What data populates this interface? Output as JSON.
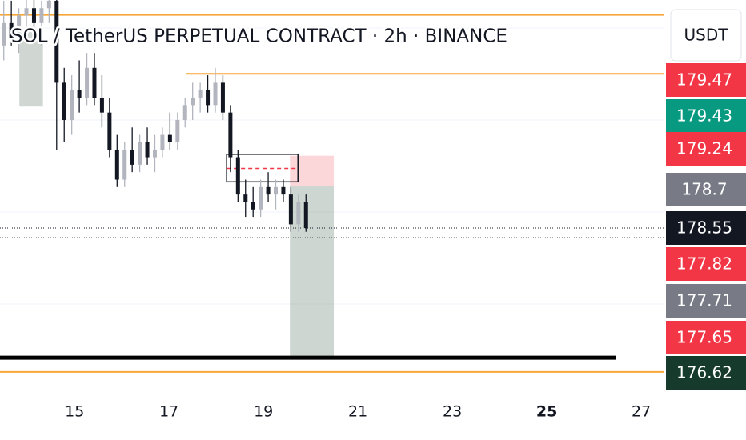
{
  "chart_data": {
    "type": "candlestick",
    "title": "SOL / TetherUS PERPETUAL CONTRACT · 2h · BINANCE",
    "currency": "USDT",
    "xlim": [
      13.42,
      27.49
    ],
    "ylim": [
      176.35,
      181.61
    ],
    "xticks": [
      15,
      17,
      19,
      21,
      23,
      25,
      27
    ],
    "up_color": "#b2b5be",
    "down_color": "#131722",
    "x": [
      13.5,
      13.66,
      13.82,
      13.98,
      14.14,
      14.3,
      14.46,
      14.62,
      14.78,
      14.94,
      15.1,
      15.26,
      15.42,
      15.58,
      15.74,
      15.9,
      16.06,
      16.22,
      16.38,
      16.54,
      16.7,
      16.86,
      17.02,
      17.18,
      17.34,
      17.5,
      17.66,
      17.82,
      17.98,
      18.14,
      18.3,
      18.46,
      18.62,
      18.78,
      18.94,
      19.1,
      19.26,
      19.42,
      19.58,
      19.74,
      19.9
    ],
    "open": [
      181.0,
      181.3,
      181.1,
      181.4,
      181.5,
      181.3,
      181.5,
      181.6,
      180.5,
      180.0,
      180.4,
      180.3,
      180.7,
      180.3,
      180.1,
      179.6,
      179.2,
      179.6,
      179.4,
      179.7,
      179.5,
      179.6,
      179.8,
      179.7,
      180.0,
      180.2,
      180.3,
      180.4,
      180.2,
      180.5,
      180.1,
      179.5,
      179.0,
      178.9,
      178.8,
      179.1,
      179.0,
      179.1,
      179.0,
      178.6,
      178.9
    ],
    "high": [
      181.6,
      181.6,
      181.5,
      181.7,
      181.7,
      181.6,
      181.7,
      181.7,
      180.7,
      180.6,
      180.8,
      180.9,
      180.9,
      180.6,
      180.3,
      179.8,
      179.7,
      179.9,
      179.8,
      179.9,
      179.8,
      179.9,
      180.1,
      180.1,
      180.3,
      180.5,
      180.5,
      180.6,
      180.7,
      180.6,
      180.2,
      179.6,
      179.2,
      179.1,
      179.2,
      179.3,
      179.2,
      179.2,
      179.1,
      179.0,
      179.0
    ],
    "low": [
      180.8,
      181.0,
      180.9,
      181.2,
      181.1,
      181.0,
      181.3,
      179.6,
      179.7,
      179.8,
      180.1,
      180.2,
      180.2,
      179.9,
      179.5,
      179.1,
      179.1,
      179.3,
      179.3,
      179.4,
      179.3,
      179.5,
      179.6,
      179.6,
      179.9,
      180.0,
      180.1,
      180.1,
      180.1,
      180.0,
      179.3,
      178.9,
      178.7,
      178.7,
      178.7,
      178.9,
      178.8,
      178.9,
      178.5,
      178.5,
      178.5
    ],
    "close": [
      181.3,
      181.1,
      181.4,
      181.5,
      181.3,
      181.5,
      181.6,
      180.5,
      180.0,
      180.4,
      180.3,
      180.7,
      180.3,
      180.1,
      179.6,
      179.2,
      179.6,
      179.4,
      179.7,
      179.5,
      179.6,
      179.8,
      179.7,
      180.0,
      180.2,
      180.3,
      180.4,
      180.2,
      180.5,
      180.1,
      179.5,
      179.0,
      178.9,
      178.8,
      179.1,
      179.0,
      179.1,
      179.0,
      178.6,
      178.9,
      178.55
    ],
    "levels": [
      {
        "value": 181.41,
        "color": "#f7a738"
      },
      {
        "value": 180.62,
        "start": 17.37,
        "color": "#f7a738"
      },
      {
        "value": 176.62,
        "color": "#f7a738"
      },
      {
        "value": 176.81,
        "end": 26.47,
        "color": "#000000"
      }
    ],
    "dotted_lines": [
      178.55,
      178.42
    ],
    "zones": [
      {
        "x0": 13.83,
        "x1": 14.33,
        "y0": 180.18,
        "y1": 181.18,
        "color": "rgba(120,140,130,0.35)"
      },
      {
        "x0": 19.56,
        "x1": 20.49,
        "y0": 179.11,
        "y1": 179.52,
        "color": "rgba(242,54,69,0.2)"
      },
      {
        "x0": 19.56,
        "x1": 20.49,
        "y0": 176.81,
        "y1": 179.11,
        "color": "rgba(90,120,100,0.3)"
      }
    ],
    "box": {
      "x0": 18.22,
      "x1": 19.73,
      "y0": 179.17,
      "y1": 179.54,
      "mid": 179.35
    },
    "price_tags": [
      {
        "value": 179.47,
        "color": "#f23645"
      },
      {
        "value": 179.43,
        "color": "#089981"
      },
      {
        "value": 179.24,
        "color": "#f23645"
      },
      {
        "value": 178.7,
        "color": "#787b86"
      },
      {
        "value": 178.55,
        "color": "#131722"
      },
      {
        "value": 177.82,
        "color": "#f23645"
      },
      {
        "value": 177.71,
        "color": "#787b86"
      },
      {
        "value": 177.65,
        "color": "#f23645"
      },
      {
        "value": 176.62,
        "color": "#163a2c"
      }
    ]
  }
}
